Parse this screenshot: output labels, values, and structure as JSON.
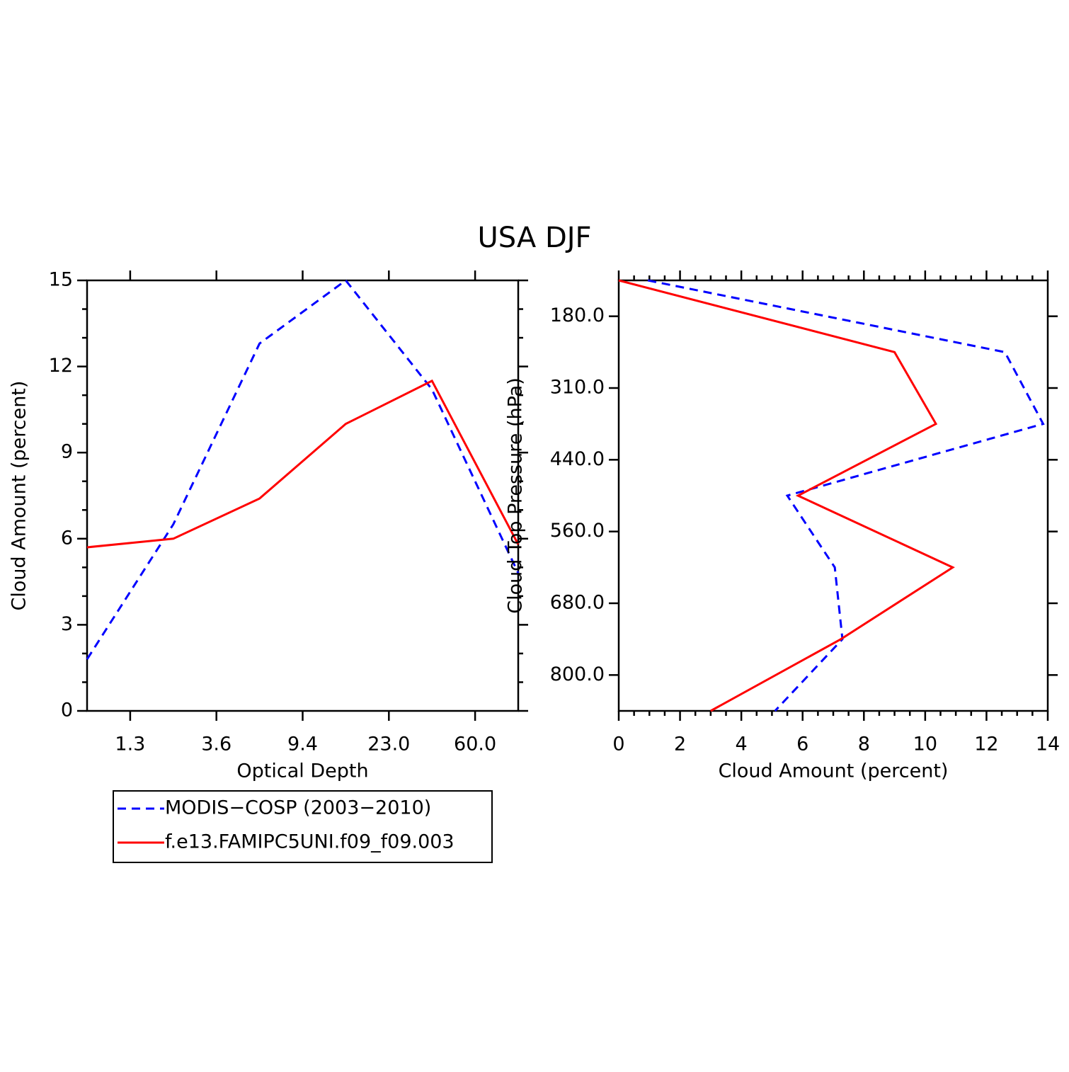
{
  "title": "USA DJF",
  "chart_data": [
    {
      "type": "line",
      "orientation": "vertical",
      "xlabel": "Optical Depth",
      "ylabel": "Cloud Amount (percent)",
      "x": [
        0,
        1,
        2,
        3,
        4,
        5
      ],
      "xlim": [
        0,
        5
      ],
      "xticks": [
        {
          "value": 0.5,
          "label": "1.3"
        },
        {
          "value": 1.5,
          "label": "3.6"
        },
        {
          "value": 2.5,
          "label": "9.4"
        },
        {
          "value": 3.5,
          "label": "23.0"
        },
        {
          "value": 4.5,
          "label": "60.0"
        }
      ],
      "ylim": [
        0,
        15
      ],
      "yticks": [
        0,
        3,
        6,
        9,
        12,
        15
      ],
      "legend": "below",
      "series": [
        {
          "name": "MODIS−COSP (2003−2010)",
          "color": "#0000ff",
          "line_style": "dashed",
          "values": [
            1.8,
            6.5,
            12.8,
            15.0,
            11.2,
            4.8
          ]
        },
        {
          "name": "f.e13.FAMIPC5UNI.f09_f09.003",
          "color": "#ff0000",
          "line_style": "solid",
          "values": [
            5.7,
            6.0,
            7.4,
            10.0,
            11.5,
            5.8
          ]
        }
      ]
    },
    {
      "type": "line",
      "orientation": "horizontal",
      "xlabel": "Cloud Amount (percent)",
      "ylabel": "Cloud Top Pressure (hPa)",
      "y": [
        0,
        1,
        2,
        3,
        4,
        5,
        6
      ],
      "ylim": [
        0,
        6
      ],
      "y_reversed": true,
      "yticks": [
        {
          "value": 0.5,
          "label": "180.0"
        },
        {
          "value": 1.5,
          "label": "310.0"
        },
        {
          "value": 2.5,
          "label": "440.0"
        },
        {
          "value": 3.5,
          "label": "560.0"
        },
        {
          "value": 4.5,
          "label": "680.0"
        },
        {
          "value": 5.5,
          "label": "800.0"
        }
      ],
      "xlim": [
        0,
        14
      ],
      "xticks": [
        0,
        2,
        4,
        6,
        8,
        10,
        12,
        14
      ],
      "series": [
        {
          "color": "#0000ff",
          "line_style": "dashed",
          "values": [
            0.95,
            12.6,
            13.85,
            5.5,
            7.05,
            7.3,
            5.1
          ]
        },
        {
          "color": "#ff0000",
          "line_style": "solid",
          "values": [
            0.0,
            9.0,
            10.35,
            5.85,
            10.9,
            7.25,
            3.0
          ]
        }
      ]
    }
  ]
}
